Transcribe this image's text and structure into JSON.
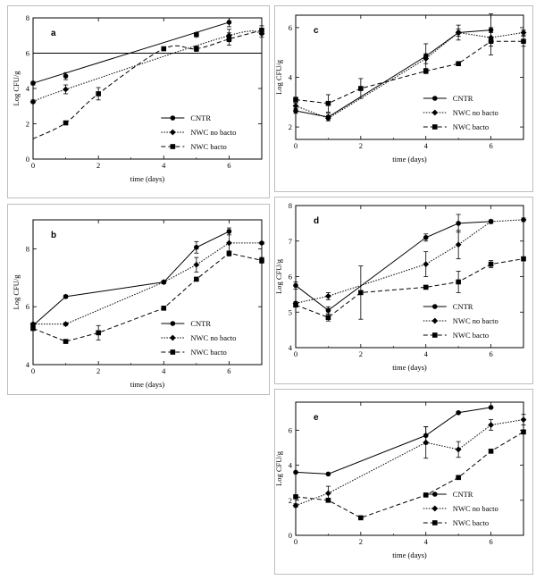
{
  "figure": {
    "legend_labels": [
      "CNTR",
      "NWC no bacto",
      "NWC bacto"
    ],
    "series_styles": [
      {
        "name": "CNTR",
        "dash": "",
        "marker": "circle",
        "color": "#000000"
      },
      {
        "name": "NWC no bacto",
        "dash": "1.5,1.5",
        "marker": "diamond",
        "color": "#000000"
      },
      {
        "name": "NWC bacto",
        "dash": "5,3",
        "marker": "square",
        "color": "#000000"
      }
    ]
  },
  "chart_data": [
    {
      "id": "a",
      "type": "line",
      "panel_label": "a",
      "xlabel": "time (days)",
      "ylabel": "Log CFU/g",
      "xlim": [
        0,
        7
      ],
      "ylim": [
        0,
        8
      ],
      "xticks": [
        0,
        2,
        4,
        6
      ],
      "yticks": [
        0,
        2,
        4,
        6,
        8
      ],
      "hline": 6,
      "legend_position": "bottom-right",
      "series": [
        {
          "name": "CNTR",
          "x": [
            0,
            1,
            6
          ],
          "y": [
            4.3,
            4.7,
            7.75
          ],
          "err": [
            0.1,
            0.2,
            0.25
          ],
          "fit": "line"
        },
        {
          "name": "NWC no bacto",
          "x": [
            0,
            1,
            6,
            7
          ],
          "y": [
            3.25,
            3.95,
            7.0,
            7.1
          ],
          "err": [
            0.1,
            0.25,
            0.35,
            0.2
          ],
          "fit": "curve"
        },
        {
          "name": "NWC bacto",
          "x": [
            1,
            2,
            4,
            5,
            6,
            7
          ],
          "y": [
            2.05,
            3.7,
            6.25,
            6.25,
            6.8,
            7.3
          ],
          "err": [
            0.1,
            0.35,
            0.1,
            0.15,
            0.35,
            0.25
          ],
          "fit": "curve"
        }
      ],
      "extra_points": [
        {
          "x": 5,
          "y": 7.05,
          "err": 0.2
        }
      ]
    },
    {
      "id": "b",
      "type": "line",
      "panel_label": "b",
      "xlabel": "time (days)",
      "ylabel": "Log CFU/g",
      "xlim": [
        0,
        7
      ],
      "ylim": [
        4,
        9
      ],
      "xticks": [
        0,
        2,
        4,
        6
      ],
      "yticks": [
        4,
        6,
        8
      ],
      "legend_position": "bottom-right",
      "series": [
        {
          "name": "CNTR",
          "x": [
            0,
            1,
            4,
            5,
            6
          ],
          "y": [
            5.35,
            6.35,
            6.85,
            8.05,
            8.6
          ],
          "err": [
            0.08,
            0.05,
            0.05,
            0.2,
            0.12
          ]
        },
        {
          "name": "NWC no bacto",
          "x": [
            0,
            1,
            4,
            5,
            6,
            7
          ],
          "y": [
            5.4,
            5.4,
            6.85,
            7.45,
            8.2,
            8.2
          ],
          "err": [
            0.05,
            0.05,
            0.05,
            0.25,
            0.45,
            0.05
          ]
        },
        {
          "name": "NWC bacto",
          "x": [
            0,
            1,
            2,
            4,
            5,
            6,
            7
          ],
          "y": [
            5.25,
            4.8,
            5.1,
            5.95,
            6.95,
            7.85,
            7.6
          ],
          "err": [
            0.05,
            0.05,
            0.25,
            0.05,
            0.05,
            0.05,
            0.1
          ]
        }
      ]
    },
    {
      "id": "c",
      "type": "line",
      "panel_label": "c",
      "xlabel": "time (days)",
      "ylabel": "Log CFU/g",
      "xlim": [
        0,
        7
      ],
      "ylim": [
        1.5,
        6.5
      ],
      "xticks": [
        0,
        2,
        4,
        6
      ],
      "yticks": [
        2,
        4,
        6
      ],
      "legend_position": "bottom-right",
      "series": [
        {
          "name": "CNTR",
          "x": [
            0,
            1,
            4,
            5,
            6
          ],
          "y": [
            2.65,
            2.4,
            4.85,
            5.8,
            5.9
          ],
          "err": [
            0.1,
            0.15,
            0.5,
            0.3,
            0.65
          ]
        },
        {
          "name": "NWC no bacto",
          "x": [
            0,
            1,
            4,
            5,
            6,
            7
          ],
          "y": [
            2.85,
            2.35,
            4.75,
            5.8,
            5.6,
            5.8
          ],
          "err": [
            0.1,
            0.1,
            0.2,
            0.15,
            0.2,
            0.1
          ]
        },
        {
          "name": "NWC bacto",
          "x": [
            0,
            1,
            2,
            4,
            5,
            6,
            7
          ],
          "y": [
            3.1,
            2.95,
            3.55,
            4.25,
            4.55,
            5.45,
            5.45
          ],
          "err": [
            0.1,
            0.35,
            0.4,
            0.1,
            0.05,
            0.55,
            0.2
          ]
        }
      ]
    },
    {
      "id": "d",
      "type": "line",
      "panel_label": "d",
      "xlabel": "time (days)",
      "ylabel": "Log CFU/g",
      "xlim": [
        0,
        7
      ],
      "ylim": [
        4,
        8
      ],
      "xticks": [
        0,
        2,
        4,
        6
      ],
      "yticks": [
        4,
        5,
        6,
        7,
        8
      ],
      "legend_position": "bottom-right",
      "series": [
        {
          "name": "CNTR",
          "x": [
            0,
            1,
            4,
            5,
            6
          ],
          "y": [
            5.75,
            5.05,
            7.1,
            7.5,
            7.55
          ],
          "err": [
            0.1,
            0.1,
            0.1,
            0.25,
            0.05
          ]
        },
        {
          "name": "NWC no bacto",
          "x": [
            0,
            1,
            4,
            5,
            6,
            7
          ],
          "y": [
            5.25,
            5.45,
            6.35,
            6.9,
            7.55,
            7.6
          ],
          "err": [
            0.05,
            0.1,
            0.35,
            0.4,
            0.05,
            0.05
          ]
        },
        {
          "name": "NWC bacto",
          "x": [
            0,
            1,
            2,
            4,
            5,
            6,
            7
          ],
          "y": [
            5.2,
            4.85,
            5.55,
            5.7,
            5.85,
            6.35,
            6.5
          ],
          "err": [
            0.05,
            0.1,
            0.75,
            0.05,
            0.3,
            0.1,
            0.05
          ]
        }
      ]
    },
    {
      "id": "e",
      "type": "line",
      "panel_label": "e",
      "xlabel": "time (days)",
      "ylabel": "Log CFU/g",
      "xlim": [
        0,
        7
      ],
      "ylim": [
        0,
        7.6
      ],
      "xticks": [
        0,
        2,
        4,
        6
      ],
      "yticks": [
        0,
        2,
        4,
        6
      ],
      "legend_position": "bottom-right",
      "series": [
        {
          "name": "CNTR",
          "x": [
            0,
            1,
            4,
            5,
            6
          ],
          "y": [
            3.6,
            3.5,
            5.7,
            7.0,
            7.3
          ],
          "err": [
            0.05,
            0.05,
            0.5,
            0.05,
            0.05
          ]
        },
        {
          "name": "NWC no bacto",
          "x": [
            0,
            1,
            4,
            5,
            6,
            7
          ],
          "y": [
            1.7,
            2.4,
            5.3,
            4.9,
            6.3,
            6.6
          ],
          "err": [
            0.1,
            0.4,
            0.9,
            0.45,
            0.3,
            0.3
          ]
        },
        {
          "name": "NWC bacto",
          "x": [
            0,
            1,
            2,
            4,
            5,
            6,
            7
          ],
          "y": [
            2.2,
            2.0,
            1.0,
            2.3,
            3.3,
            4.8,
            5.9
          ],
          "err": [
            0.05,
            0.05,
            0.05,
            0.05,
            0.05,
            0.05,
            0.05
          ]
        }
      ]
    }
  ]
}
